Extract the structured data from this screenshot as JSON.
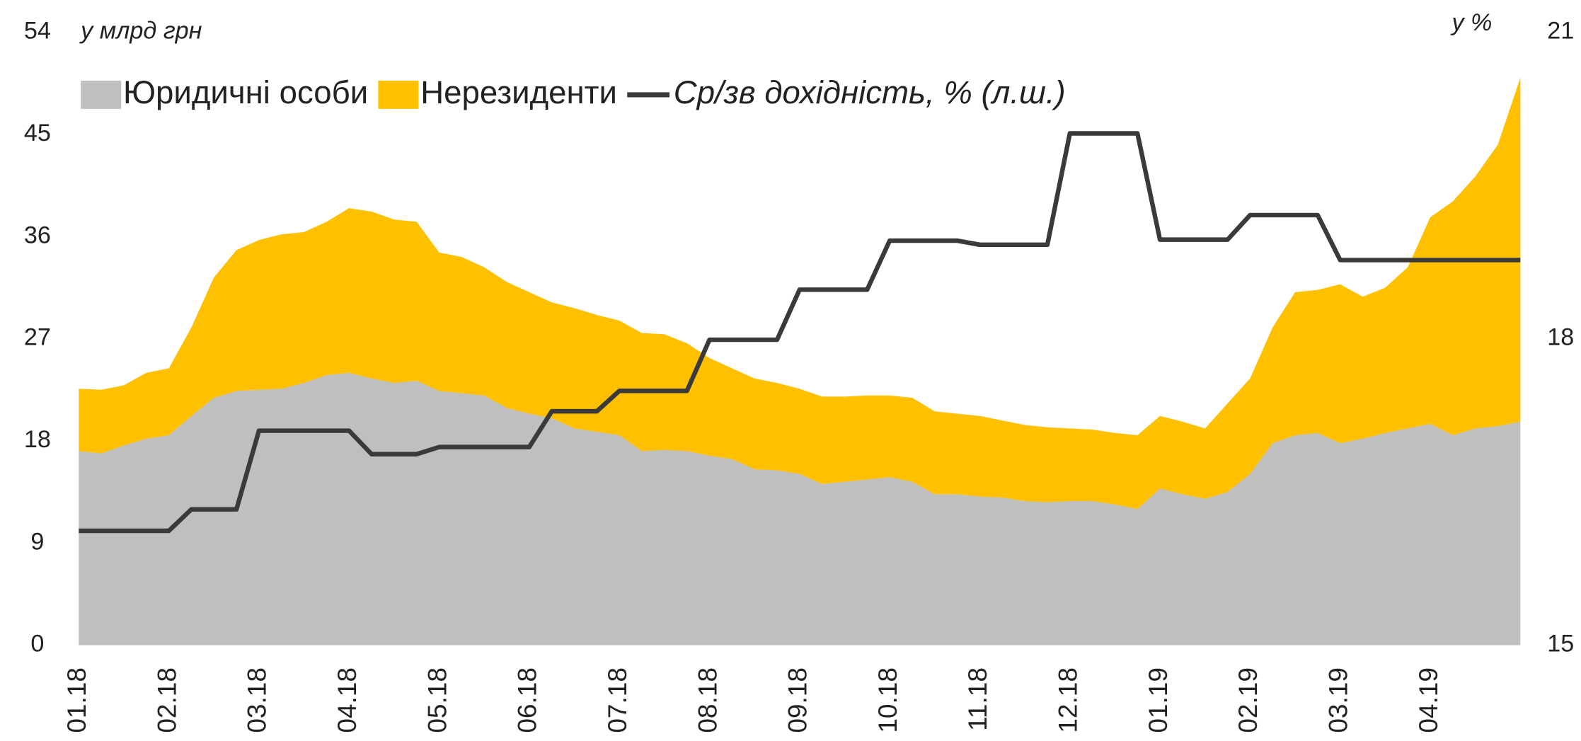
{
  "chart_data": {
    "type": "area",
    "y_label": "у млрд грн",
    "y2_label": "у %",
    "categories": [
      "01.18",
      null,
      null,
      null,
      "02.18",
      null,
      null,
      null,
      "03.18",
      null,
      null,
      null,
      "04.18",
      null,
      null,
      null,
      "05.18",
      null,
      null,
      null,
      "06.18",
      null,
      null,
      null,
      "07.18",
      null,
      null,
      null,
      "08.18",
      null,
      null,
      null,
      "09.18",
      null,
      null,
      null,
      "10.18",
      null,
      null,
      null,
      "11.18",
      null,
      null,
      null,
      "12.18",
      null,
      null,
      null,
      "01.19",
      null,
      null,
      null,
      "02.19",
      null,
      null,
      null,
      "03.19",
      null,
      null,
      null,
      "04.19",
      null,
      null,
      null,
      null
    ],
    "series": [
      {
        "name": "Юридичні особи",
        "color": "#bfbfbf",
        "stacked": true,
        "values": [
          17.1,
          16.9,
          17.6,
          18.2,
          18.5,
          20.2,
          21.8,
          22.4,
          22.5,
          22.6,
          23.1,
          23.8,
          24.0,
          23.5,
          23.1,
          23.3,
          22.4,
          22.2,
          22.0,
          20.9,
          20.4,
          20.0,
          19.1,
          18.8,
          18.5,
          17.1,
          17.2,
          17.1,
          16.7,
          16.4,
          15.5,
          15.4,
          15.1,
          14.2,
          14.4,
          14.6,
          14.8,
          14.4,
          13.3,
          13.3,
          13.1,
          13.0,
          12.7,
          12.6,
          12.7,
          12.7,
          12.4,
          12.0,
          13.8,
          13.3,
          12.9,
          13.5,
          15.1,
          17.8,
          18.5,
          18.7,
          17.8,
          18.2,
          18.7,
          19.1,
          19.5,
          18.5,
          19.1,
          19.3,
          19.7
        ]
      },
      {
        "name": "Нерезиденти",
        "color": "#ffc000",
        "stacked": true,
        "values": [
          5.5,
          5.6,
          5.3,
          5.8,
          5.9,
          7.8,
          10.6,
          12.4,
          13.2,
          13.6,
          13.3,
          13.5,
          14.5,
          14.7,
          14.4,
          14.0,
          12.2,
          12.0,
          11.3,
          11.1,
          10.7,
          10.2,
          10.6,
          10.3,
          10.1,
          10.4,
          10.2,
          9.5,
          8.6,
          8.0,
          8.0,
          7.7,
          7.5,
          7.7,
          7.5,
          7.4,
          7.2,
          7.4,
          7.3,
          7.1,
          7.1,
          6.8,
          6.7,
          6.6,
          6.4,
          6.3,
          6.3,
          6.5,
          6.4,
          6.4,
          6.2,
          7.8,
          8.4,
          10.2,
          12.6,
          12.6,
          14.0,
          12.5,
          12.8,
          14.2,
          18.2,
          20.6,
          22.2,
          24.8,
          30.3
        ]
      },
      {
        "name": "Ср/зв дохідність, % (л.ш.)",
        "color": "#3a3a3a",
        "axis": "y2",
        "line": true,
        "values": [
          16.12,
          16.12,
          16.12,
          16.12,
          16.12,
          16.33,
          16.33,
          16.33,
          17.1,
          17.1,
          17.1,
          17.1,
          17.1,
          16.87,
          16.87,
          16.87,
          16.94,
          16.94,
          16.94,
          16.94,
          16.94,
          17.29,
          17.29,
          17.29,
          17.49,
          17.49,
          17.49,
          17.49,
          17.99,
          17.99,
          17.99,
          17.99,
          18.48,
          18.48,
          18.48,
          18.48,
          18.96,
          18.96,
          18.96,
          18.96,
          18.92,
          18.92,
          18.92,
          18.92,
          20.01,
          20.01,
          20.01,
          20.01,
          18.97,
          18.97,
          18.97,
          18.97,
          19.21,
          19.21,
          19.21,
          19.21,
          18.77,
          18.77,
          18.77,
          18.77,
          18.77,
          18.77,
          18.77,
          18.77,
          18.77
        ]
      }
    ],
    "ylim": [
      0,
      54
    ],
    "yticks": [
      0,
      9,
      18,
      27,
      36,
      45,
      54
    ],
    "y2lim": [
      15,
      21
    ],
    "y2ticks": [
      15,
      18,
      21
    ]
  }
}
